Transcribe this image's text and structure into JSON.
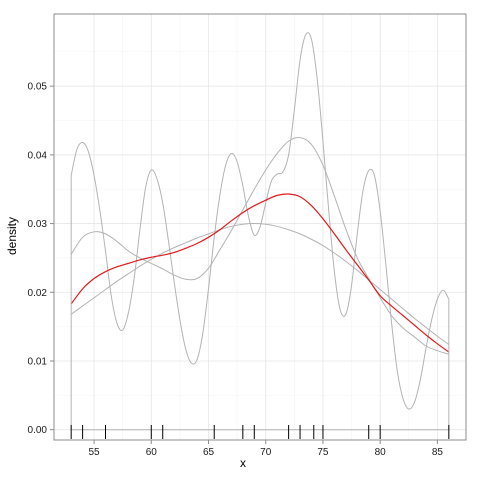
{
  "chart_data": {
    "type": "line",
    "xlabel": "x",
    "ylabel": "density",
    "xlim": [
      51.5,
      87.5
    ],
    "ylim": [
      -0.0015,
      0.0605
    ],
    "x_ticks": [
      55,
      60,
      65,
      70,
      75,
      80,
      85
    ],
    "y_ticks": [
      0.0,
      0.01,
      0.02,
      0.03,
      0.04,
      0.05
    ],
    "y_tick_labels": [
      "0.00",
      "0.01",
      "0.02",
      "0.03",
      "0.04",
      "0.05"
    ],
    "grid": true,
    "rug": [
      53,
      54,
      56,
      60,
      61,
      65.5,
      68,
      69,
      72,
      73,
      74.2,
      75,
      79,
      80,
      86
    ],
    "series": [
      {
        "color": "#e31a1c",
        "x": [
          53,
          54,
          55,
          56,
          57,
          58,
          59,
          60,
          61,
          62,
          63,
          64,
          65,
          66,
          67,
          68,
          69,
          70,
          71,
          72,
          73,
          74,
          75,
          76,
          77,
          78,
          79,
          80,
          81,
          82,
          83,
          84,
          85,
          86
        ],
        "y": [
          0.0183,
          0.0205,
          0.022,
          0.023,
          0.0237,
          0.0242,
          0.0247,
          0.0251,
          0.0254,
          0.0258,
          0.0264,
          0.0271,
          0.028,
          0.0291,
          0.0304,
          0.0316,
          0.0326,
          0.0334,
          0.0341,
          0.0343,
          0.0339,
          0.0326,
          0.0307,
          0.0285,
          0.0262,
          0.024,
          0.0218,
          0.0195,
          0.018,
          0.0166,
          0.0152,
          0.0138,
          0.0125,
          0.0113
        ]
      },
      {
        "color": "#b3b3b3",
        "x": [
          53,
          53.5,
          54,
          54.5,
          55,
          55.5,
          56,
          56.5,
          57,
          57.5,
          58,
          58.5,
          59,
          59.5,
          60,
          60.5,
          61,
          61.5,
          62,
          62.5,
          63,
          63.5,
          64,
          64.5,
          65,
          65.5,
          66,
          66.5,
          67,
          67.5,
          68,
          68.5,
          69,
          69.5,
          70,
          70.5,
          71,
          71.5,
          72,
          72.5,
          73,
          73.5,
          74,
          74.5,
          75,
          75.5,
          76,
          76.5,
          77,
          77.5,
          78,
          78.5,
          79,
          79.5,
          80,
          80.5,
          81,
          81.5,
          82,
          82.5,
          83,
          83.5,
          84,
          84.5,
          85,
          85.5,
          86
        ],
        "y": [
          0.037,
          0.0408,
          0.0418,
          0.0405,
          0.037,
          0.032,
          0.026,
          0.0195,
          0.0155,
          0.0145,
          0.017,
          0.022,
          0.029,
          0.0352,
          0.0378,
          0.0365,
          0.033,
          0.0275,
          0.0215,
          0.016,
          0.0118,
          0.0097,
          0.0102,
          0.014,
          0.0205,
          0.028,
          0.0342,
          0.0385,
          0.0402,
          0.039,
          0.0355,
          0.031,
          0.0283,
          0.0295,
          0.033,
          0.0362,
          0.0372,
          0.0375,
          0.04,
          0.0465,
          0.0538,
          0.0575,
          0.0568,
          0.051,
          0.042,
          0.032,
          0.023,
          0.0175,
          0.0168,
          0.021,
          0.0285,
          0.0348,
          0.0377,
          0.037,
          0.0318,
          0.024,
          0.0155,
          0.0085,
          0.0045,
          0.003,
          0.004,
          0.0072,
          0.0118,
          0.016,
          0.019,
          0.0203,
          0.019
        ]
      },
      {
        "color": "#b3b3b3",
        "x": [
          53,
          54,
          55,
          56,
          57,
          58,
          59,
          60,
          61,
          62,
          63,
          64,
          65,
          66,
          67,
          68,
          69,
          70,
          71,
          72,
          73,
          74,
          75,
          76,
          77,
          78,
          79,
          80,
          81,
          82,
          83,
          84,
          85,
          86
        ],
        "y": [
          0.0255,
          0.028,
          0.0288,
          0.0285,
          0.0274,
          0.026,
          0.025,
          0.0242,
          0.0234,
          0.0225,
          0.0219,
          0.022,
          0.0235,
          0.0262,
          0.029,
          0.032,
          0.035,
          0.0378,
          0.0402,
          0.042,
          0.0425,
          0.0415,
          0.0385,
          0.034,
          0.0292,
          0.025,
          0.022,
          0.0192,
          0.0166,
          0.0148,
          0.0135,
          0.0122,
          0.0115,
          0.011
        ]
      },
      {
        "color": "#b3b3b3",
        "x": [
          53,
          54,
          55,
          56,
          57,
          58,
          59,
          60,
          61,
          62,
          63,
          64,
          65,
          66,
          67,
          68,
          69,
          70,
          71,
          72,
          73,
          74,
          75,
          76,
          77,
          78,
          79,
          80,
          81,
          82,
          83,
          84,
          85,
          86
        ],
        "y": [
          0.0168,
          0.018,
          0.0192,
          0.0204,
          0.0216,
          0.0227,
          0.0238,
          0.0248,
          0.0257,
          0.0265,
          0.0272,
          0.0279,
          0.0285,
          0.0291,
          0.0296,
          0.0299,
          0.03,
          0.0299,
          0.0296,
          0.0291,
          0.0285,
          0.0277,
          0.0268,
          0.0257,
          0.0245,
          0.0232,
          0.0218,
          0.0204,
          0.019,
          0.0176,
          0.0162,
          0.0149,
          0.0136,
          0.0124
        ]
      }
    ]
  }
}
